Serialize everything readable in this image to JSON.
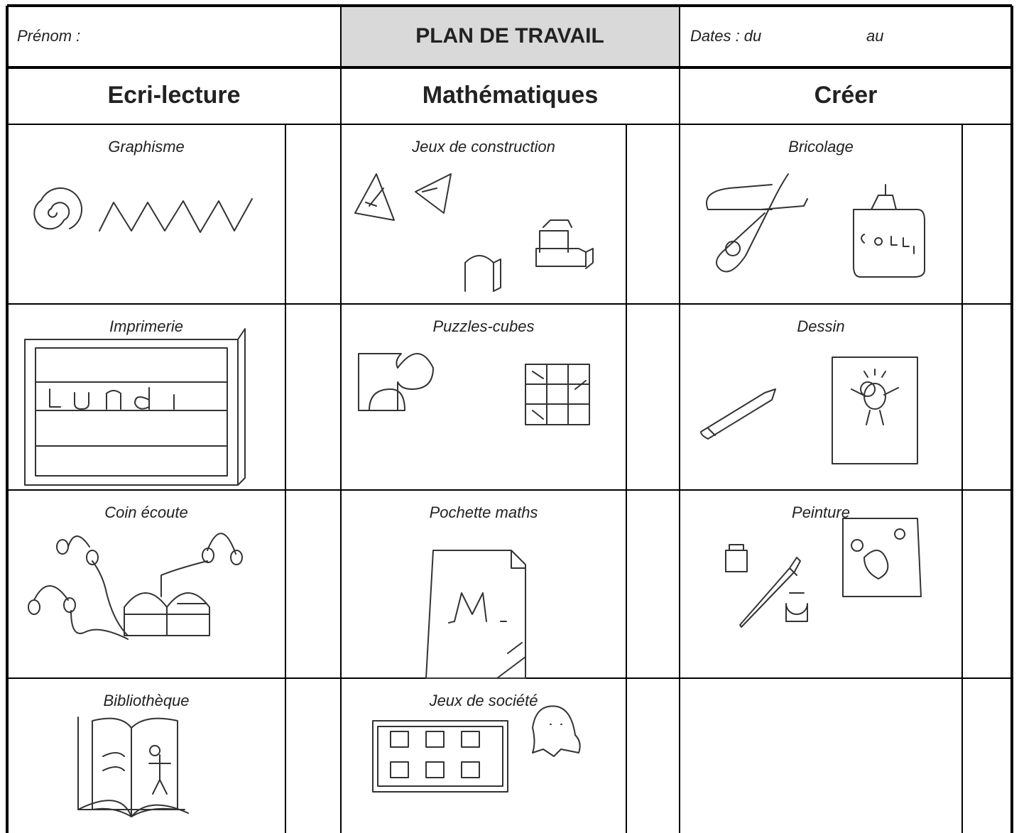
{
  "header": {
    "name_label": "Prénom :",
    "title": "PLAN DE TRAVAIL",
    "dates_label": "Dates : du",
    "to_label": "au"
  },
  "columns": [
    {
      "title": "Ecri-lecture",
      "activities": [
        "Graphisme",
        "Imprimerie",
        "Coin écoute",
        "Bibliothèque"
      ]
    },
    {
      "title": "Mathématiques",
      "activities": [
        "Jeux de construction",
        "Puzzles-cubes",
        "Pochette maths",
        "Jeux de société"
      ]
    },
    {
      "title": "Créer",
      "activities": [
        "Bricolage",
        "Dessin",
        "Peinture"
      ]
    }
  ]
}
